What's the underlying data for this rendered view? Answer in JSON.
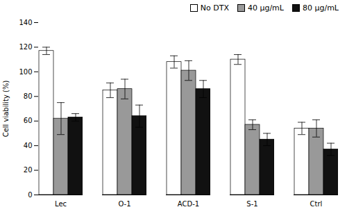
{
  "chart_data": {
    "type": "bar",
    "ylabel": "Cell viability (%)",
    "categories": [
      "Lec",
      "O-1",
      "ACD-1",
      "S-1",
      "Ctrl"
    ],
    "series": [
      {
        "name": "No DTX",
        "color": "#ffffff",
        "values": [
          117,
          85,
          108,
          110,
          54
        ],
        "errors": [
          3,
          6,
          5,
          4,
          5
        ]
      },
      {
        "name": "40 μg/mL",
        "color": "#999999",
        "values": [
          62,
          86,
          101,
          57,
          54
        ],
        "errors": [
          13,
          8,
          8,
          4,
          7
        ]
      },
      {
        "name": "80 μg/mL",
        "color": "#111111",
        "values": [
          63,
          64,
          86,
          45,
          37
        ],
        "errors": [
          3,
          9,
          7,
          5,
          5
        ]
      }
    ],
    "ylim": [
      0,
      140
    ],
    "yticks": [
      0,
      20,
      40,
      60,
      80,
      100,
      120,
      140
    ],
    "legend": "upper right",
    "grid": false
  }
}
